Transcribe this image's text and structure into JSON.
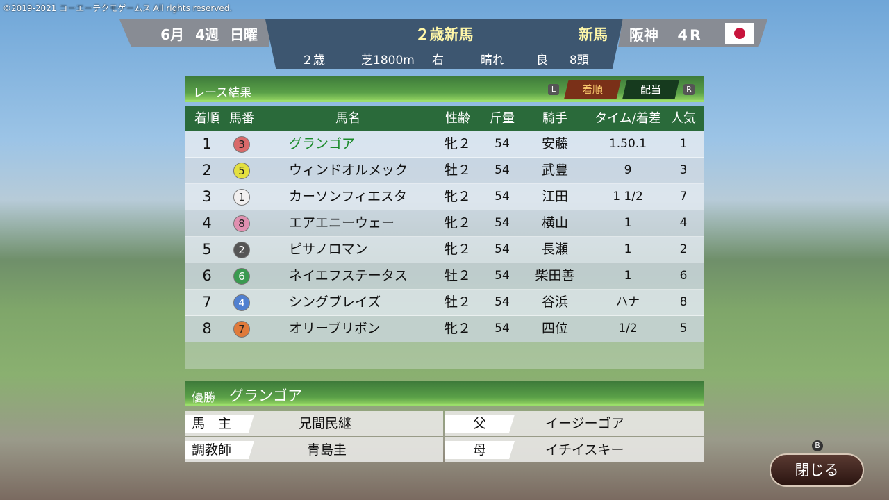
{
  "copyright": "©2019-2021 コーエーテクモゲームス All rights reserved.",
  "header": {
    "month": "6月",
    "week": "4週",
    "day": "日曜",
    "race_title": "２歳新馬",
    "race_type": "新馬",
    "age": "２歳",
    "surface": "芝1800m",
    "direction": "右",
    "weather": "晴れ",
    "going": "良",
    "runners": "8頭",
    "venue": "阪神",
    "race_no": "４R",
    "flag": "japan-flag"
  },
  "panel": {
    "title": "レース結果",
    "l_button": "L",
    "r_button": "R",
    "tab_finish": "着順",
    "tab_payout": "配当"
  },
  "columns": [
    "着順",
    "馬番",
    "馬名",
    "性齢",
    "斤量",
    "騎手",
    "タイム/着差",
    "人気"
  ],
  "rows": [
    {
      "pos": "1",
      "num": "3",
      "color": "#d96a6a",
      "name": "グランゴア",
      "sexage": "牝２",
      "weight": "54",
      "jockey": "安藤",
      "time": "1.50.1",
      "pop": "1"
    },
    {
      "pos": "2",
      "num": "5",
      "color": "#e4e040",
      "name": "ウィンドオルメック",
      "sexage": "牡２",
      "weight": "54",
      "jockey": "武豊",
      "time": "9",
      "pop": "3"
    },
    {
      "pos": "3",
      "num": "1",
      "color": "#f2f0f0",
      "name": "カーソンフィエスタ",
      "sexage": "牝２",
      "weight": "54",
      "jockey": "江田",
      "time": "1 1/2",
      "pop": "7"
    },
    {
      "pos": "4",
      "num": "8",
      "color": "#e090b0",
      "name": "エアエニーウェー",
      "sexage": "牝２",
      "weight": "54",
      "jockey": "横山",
      "time": "1",
      "pop": "4"
    },
    {
      "pos": "5",
      "num": "2",
      "color": "#555555",
      "name": "ピサノロマン",
      "sexage": "牝２",
      "weight": "54",
      "jockey": "長瀬",
      "time": "1",
      "pop": "2"
    },
    {
      "pos": "6",
      "num": "6",
      "color": "#3a9a50",
      "name": "ネイエフステータス",
      "sexage": "牡２",
      "weight": "54",
      "jockey": "柴田善",
      "time": "1",
      "pop": "6"
    },
    {
      "pos": "7",
      "num": "4",
      "color": "#5080d0",
      "name": "シングブレイズ",
      "sexage": "牡２",
      "weight": "54",
      "jockey": "谷浜",
      "time": "ハナ",
      "pop": "8"
    },
    {
      "pos": "8",
      "num": "7",
      "color": "#e07a3a",
      "name": "オリーブリボン",
      "sexage": "牝２",
      "weight": "54",
      "jockey": "四位",
      "time": "1/2",
      "pop": "5"
    }
  ],
  "winner": {
    "label": "優勝",
    "name": "グランゴア",
    "owner_label": "馬　主",
    "owner": "兄間民継",
    "trainer_label": "調教師",
    "trainer": "青島圭",
    "sire_label": "父",
    "sire": "イージーゴア",
    "dam_label": "母",
    "dam": "イチイスキー"
  },
  "close": {
    "button_hint": "B",
    "label": "閉じる"
  }
}
